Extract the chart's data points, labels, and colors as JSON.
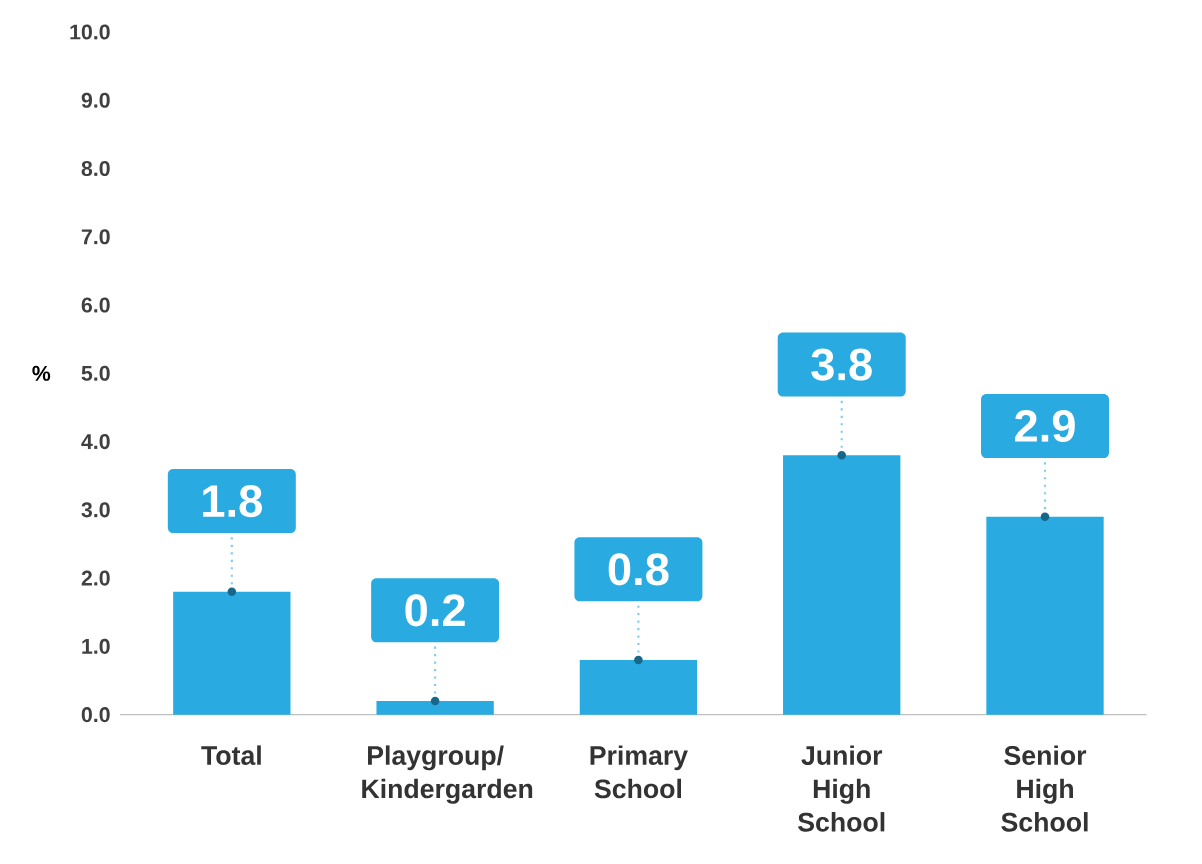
{
  "chart_data": {
    "type": "bar",
    "ylabel": "%",
    "categories": [
      "Total",
      "Playgroup/ Kindergarden",
      "Primary School",
      "Junior High School",
      "Senior High School"
    ],
    "values": [
      1.8,
      0.2,
      0.8,
      3.8,
      2.9
    ],
    "color": "#29abe2",
    "ylim": [
      0,
      10
    ],
    "yticks": [
      {
        "value": 0,
        "label": "0.0"
      },
      {
        "value": 1,
        "label": "1.0"
      },
      {
        "value": 2,
        "label": "2.0"
      },
      {
        "value": 3,
        "label": "3.0"
      },
      {
        "value": 4,
        "label": "4.0"
      },
      {
        "value": 5,
        "label": "5.0"
      },
      {
        "value": 6,
        "label": "6.0"
      },
      {
        "value": 7,
        "label": "7.0"
      },
      {
        "value": 8,
        "label": "8.0"
      },
      {
        "value": 9,
        "label": "9.0"
      },
      {
        "value": 10,
        "label": "10.0"
      }
    ],
    "data_labels": true,
    "grid": false
  }
}
